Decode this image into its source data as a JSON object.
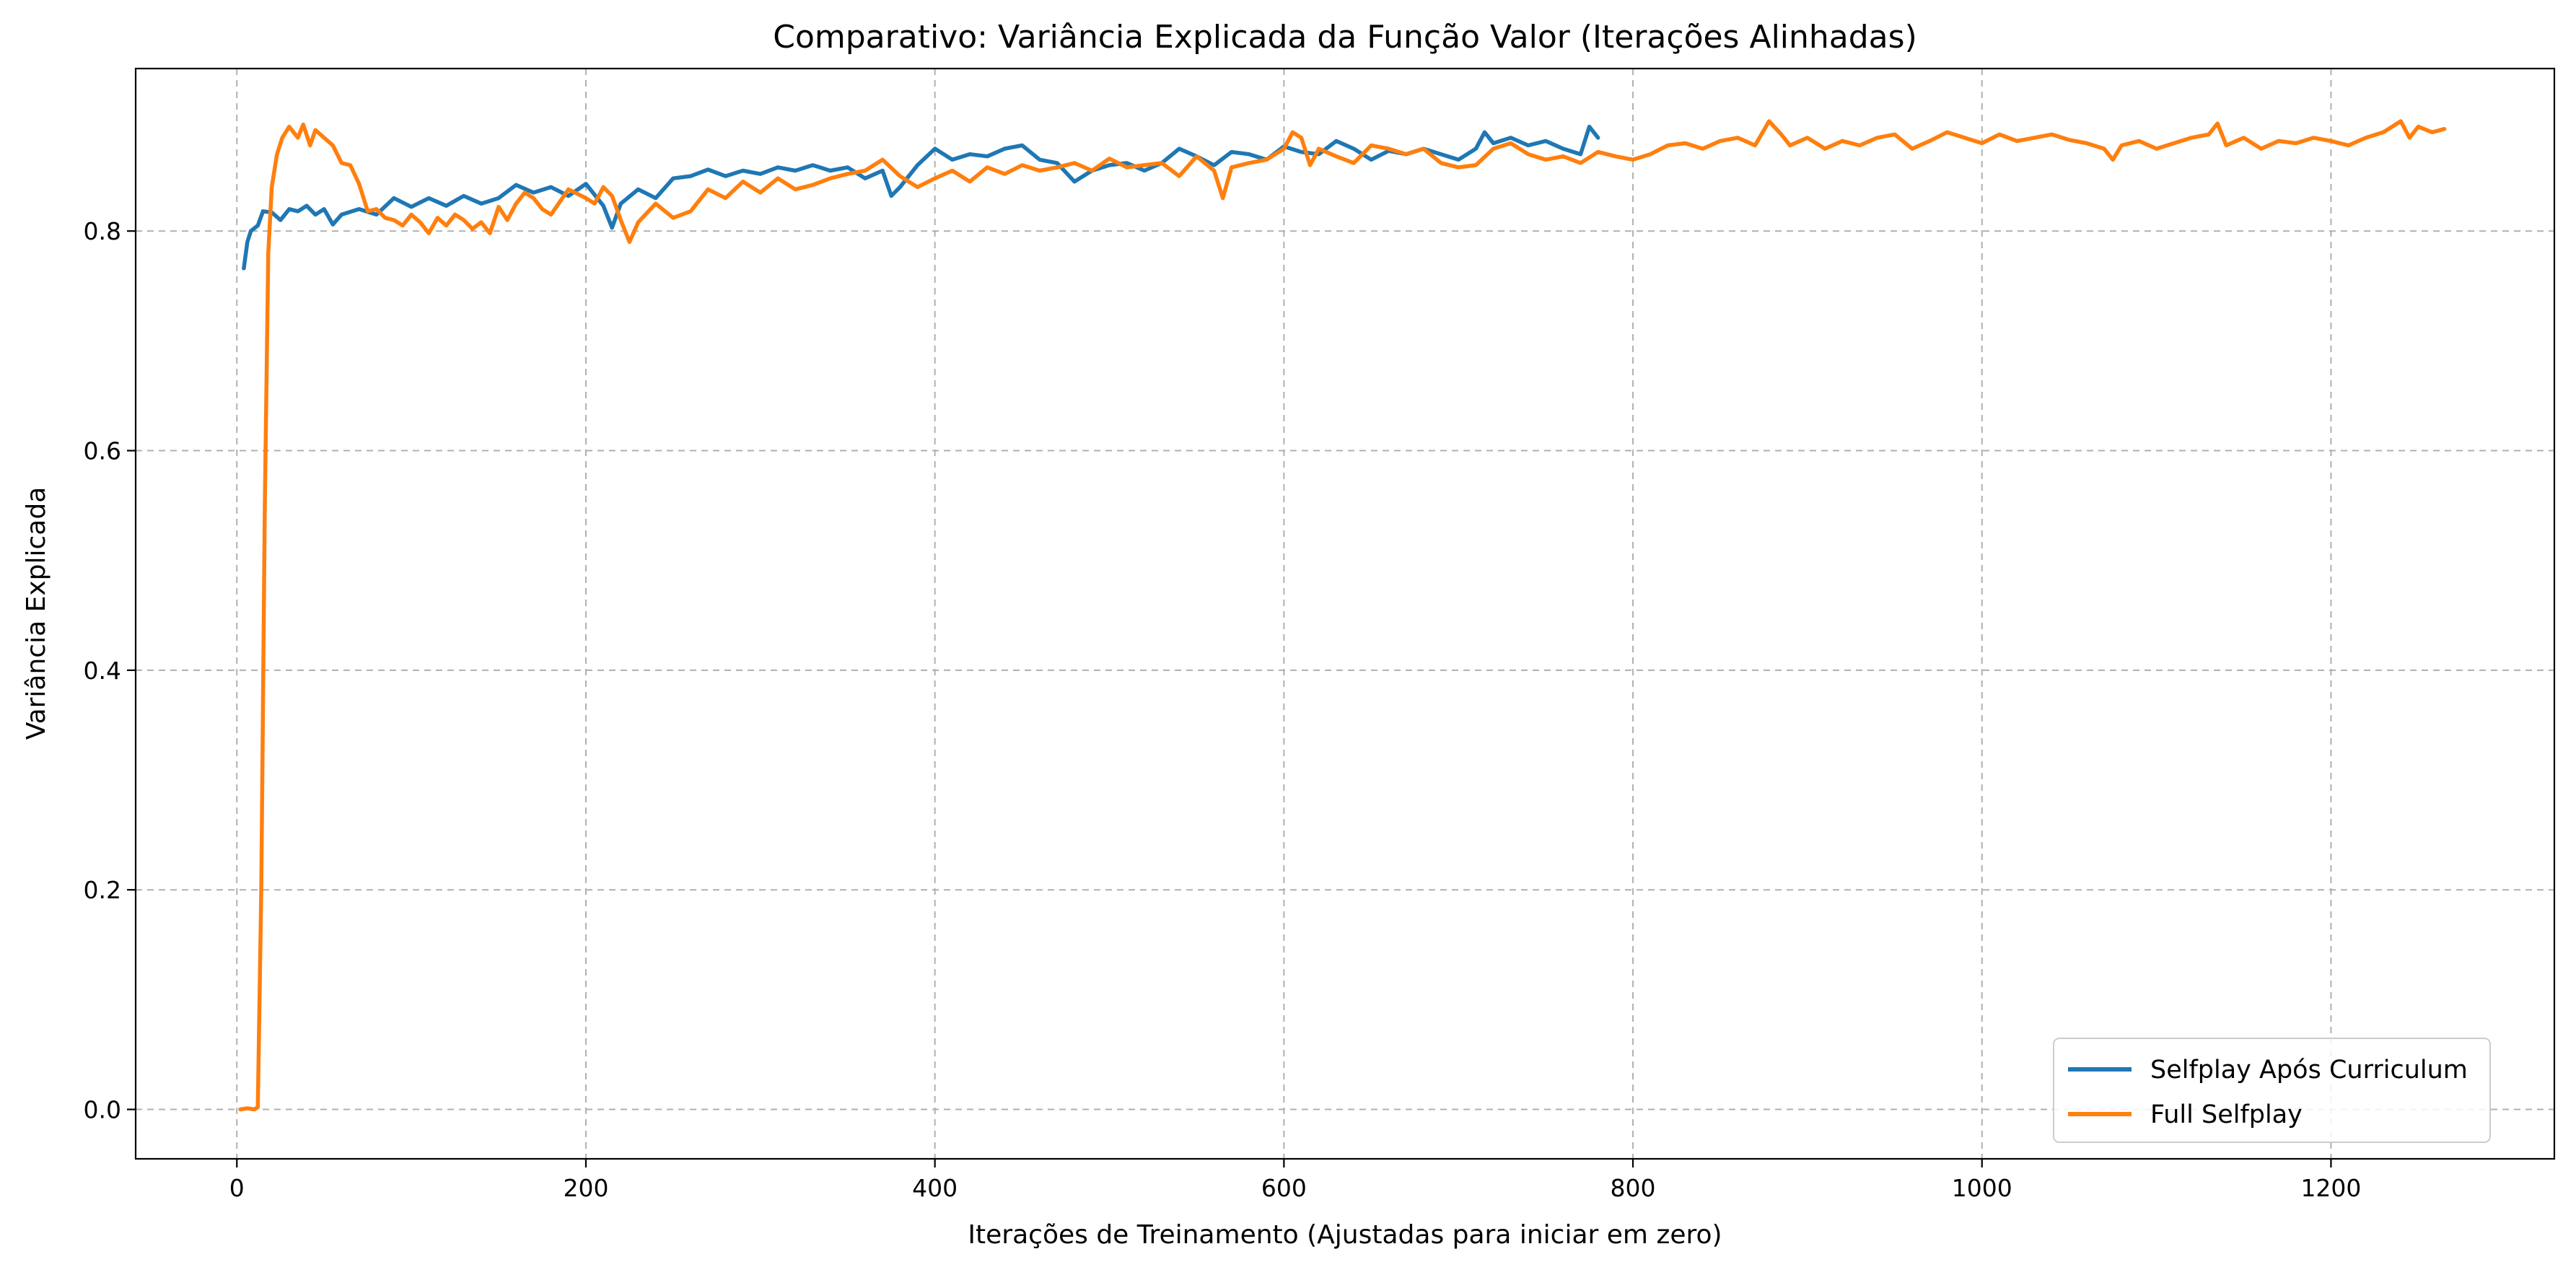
{
  "chart_data": {
    "type": "line",
    "title": "Comparativo: Variância Explicada da Função Valor (Iterações Alinhadas)",
    "xlabel": "Iterações de Treinamento (Ajustadas para iniciar em zero)",
    "ylabel": "Variância Explicada",
    "xlim": [
      -58,
      1328
    ],
    "ylim": [
      -0.045,
      0.948
    ],
    "xticks": [
      0,
      200,
      400,
      600,
      800,
      1000,
      1200
    ],
    "yticks": [
      0.0,
      0.2,
      0.4,
      0.6,
      0.8
    ],
    "xtick_labels": [
      "0",
      "200",
      "400",
      "600",
      "800",
      "1000",
      "1200"
    ],
    "ytick_labels": [
      "0.0",
      "0.2",
      "0.4",
      "0.6",
      "0.8"
    ],
    "grid": true,
    "legend_position": "lower-right",
    "series": [
      {
        "name": "Selfplay Após Curriculum",
        "color": "#1f77b4",
        "points": [
          [
            4,
            0.766
          ],
          [
            6,
            0.79
          ],
          [
            8,
            0.8
          ],
          [
            12,
            0.805
          ],
          [
            15,
            0.818
          ],
          [
            20,
            0.817
          ],
          [
            25,
            0.81
          ],
          [
            30,
            0.82
          ],
          [
            35,
            0.818
          ],
          [
            40,
            0.823
          ],
          [
            45,
            0.815
          ],
          [
            50,
            0.82
          ],
          [
            55,
            0.806
          ],
          [
            60,
            0.815
          ],
          [
            70,
            0.82
          ],
          [
            80,
            0.815
          ],
          [
            90,
            0.83
          ],
          [
            100,
            0.822
          ],
          [
            110,
            0.83
          ],
          [
            120,
            0.823
          ],
          [
            130,
            0.832
          ],
          [
            140,
            0.825
          ],
          [
            150,
            0.83
          ],
          [
            160,
            0.842
          ],
          [
            170,
            0.835
          ],
          [
            180,
            0.84
          ],
          [
            190,
            0.832
          ],
          [
            200,
            0.843
          ],
          [
            210,
            0.823
          ],
          [
            215,
            0.803
          ],
          [
            220,
            0.825
          ],
          [
            230,
            0.838
          ],
          [
            240,
            0.83
          ],
          [
            250,
            0.848
          ],
          [
            260,
            0.85
          ],
          [
            270,
            0.856
          ],
          [
            280,
            0.85
          ],
          [
            290,
            0.855
          ],
          [
            300,
            0.852
          ],
          [
            310,
            0.858
          ],
          [
            320,
            0.855
          ],
          [
            330,
            0.86
          ],
          [
            340,
            0.855
          ],
          [
            350,
            0.858
          ],
          [
            360,
            0.848
          ],
          [
            370,
            0.855
          ],
          [
            375,
            0.832
          ],
          [
            380,
            0.84
          ],
          [
            390,
            0.86
          ],
          [
            400,
            0.875
          ],
          [
            410,
            0.865
          ],
          [
            420,
            0.87
          ],
          [
            430,
            0.868
          ],
          [
            440,
            0.875
          ],
          [
            450,
            0.878
          ],
          [
            460,
            0.865
          ],
          [
            470,
            0.862
          ],
          [
            480,
            0.845
          ],
          [
            490,
            0.855
          ],
          [
            500,
            0.86
          ],
          [
            510,
            0.862
          ],
          [
            520,
            0.855
          ],
          [
            530,
            0.862
          ],
          [
            540,
            0.875
          ],
          [
            550,
            0.868
          ],
          [
            560,
            0.86
          ],
          [
            570,
            0.872
          ],
          [
            580,
            0.87
          ],
          [
            590,
            0.865
          ],
          [
            600,
            0.877
          ],
          [
            610,
            0.872
          ],
          [
            620,
            0.87
          ],
          [
            630,
            0.882
          ],
          [
            640,
            0.875
          ],
          [
            650,
            0.865
          ],
          [
            660,
            0.873
          ],
          [
            670,
            0.87
          ],
          [
            680,
            0.875
          ],
          [
            690,
            0.87
          ],
          [
            700,
            0.865
          ],
          [
            710,
            0.875
          ],
          [
            715,
            0.89
          ],
          [
            720,
            0.88
          ],
          [
            730,
            0.885
          ],
          [
            740,
            0.878
          ],
          [
            750,
            0.882
          ],
          [
            760,
            0.875
          ],
          [
            770,
            0.87
          ],
          [
            775,
            0.895
          ],
          [
            780,
            0.885
          ]
        ]
      },
      {
        "name": "Full Selfplay",
        "color": "#ff7f0e",
        "points": [
          [
            2,
            0.0
          ],
          [
            6,
            0.001
          ],
          [
            10,
            0.0
          ],
          [
            12,
            0.002
          ],
          [
            14,
            0.2
          ],
          [
            16,
            0.55
          ],
          [
            18,
            0.78
          ],
          [
            20,
            0.84
          ],
          [
            23,
            0.87
          ],
          [
            26,
            0.885
          ],
          [
            30,
            0.895
          ],
          [
            35,
            0.885
          ],
          [
            38,
            0.897
          ],
          [
            42,
            0.878
          ],
          [
            45,
            0.892
          ],
          [
            50,
            0.885
          ],
          [
            55,
            0.878
          ],
          [
            60,
            0.862
          ],
          [
            65,
            0.86
          ],
          [
            70,
            0.843
          ],
          [
            75,
            0.818
          ],
          [
            80,
            0.82
          ],
          [
            85,
            0.812
          ],
          [
            90,
            0.81
          ],
          [
            95,
            0.805
          ],
          [
            100,
            0.815
          ],
          [
            105,
            0.808
          ],
          [
            110,
            0.798
          ],
          [
            115,
            0.812
          ],
          [
            120,
            0.805
          ],
          [
            125,
            0.815
          ],
          [
            130,
            0.81
          ],
          [
            135,
            0.802
          ],
          [
            140,
            0.808
          ],
          [
            145,
            0.798
          ],
          [
            150,
            0.822
          ],
          [
            155,
            0.81
          ],
          [
            160,
            0.825
          ],
          [
            165,
            0.835
          ],
          [
            170,
            0.83
          ],
          [
            175,
            0.82
          ],
          [
            180,
            0.815
          ],
          [
            190,
            0.838
          ],
          [
            200,
            0.83
          ],
          [
            205,
            0.825
          ],
          [
            210,
            0.84
          ],
          [
            215,
            0.832
          ],
          [
            220,
            0.81
          ],
          [
            225,
            0.79
          ],
          [
            230,
            0.808
          ],
          [
            240,
            0.825
          ],
          [
            250,
            0.812
          ],
          [
            260,
            0.818
          ],
          [
            270,
            0.838
          ],
          [
            280,
            0.83
          ],
          [
            290,
            0.845
          ],
          [
            300,
            0.835
          ],
          [
            310,
            0.848
          ],
          [
            320,
            0.838
          ],
          [
            330,
            0.842
          ],
          [
            340,
            0.848
          ],
          [
            350,
            0.852
          ],
          [
            360,
            0.855
          ],
          [
            370,
            0.865
          ],
          [
            380,
            0.85
          ],
          [
            390,
            0.84
          ],
          [
            400,
            0.848
          ],
          [
            410,
            0.855
          ],
          [
            420,
            0.845
          ],
          [
            430,
            0.858
          ],
          [
            440,
            0.852
          ],
          [
            450,
            0.86
          ],
          [
            460,
            0.855
          ],
          [
            470,
            0.858
          ],
          [
            480,
            0.862
          ],
          [
            490,
            0.855
          ],
          [
            500,
            0.866
          ],
          [
            510,
            0.858
          ],
          [
            520,
            0.86
          ],
          [
            530,
            0.862
          ],
          [
            540,
            0.85
          ],
          [
            550,
            0.868
          ],
          [
            560,
            0.855
          ],
          [
            565,
            0.83
          ],
          [
            570,
            0.858
          ],
          [
            580,
            0.862
          ],
          [
            590,
            0.865
          ],
          [
            600,
            0.875
          ],
          [
            605,
            0.89
          ],
          [
            610,
            0.885
          ],
          [
            615,
            0.86
          ],
          [
            620,
            0.875
          ],
          [
            630,
            0.868
          ],
          [
            640,
            0.862
          ],
          [
            650,
            0.878
          ],
          [
            660,
            0.875
          ],
          [
            670,
            0.87
          ],
          [
            680,
            0.875
          ],
          [
            690,
            0.862
          ],
          [
            700,
            0.858
          ],
          [
            710,
            0.86
          ],
          [
            720,
            0.875
          ],
          [
            730,
            0.88
          ],
          [
            740,
            0.87
          ],
          [
            750,
            0.865
          ],
          [
            760,
            0.868
          ],
          [
            770,
            0.862
          ],
          [
            780,
            0.872
          ],
          [
            790,
            0.868
          ],
          [
            800,
            0.865
          ],
          [
            810,
            0.87
          ],
          [
            820,
            0.878
          ],
          [
            830,
            0.88
          ],
          [
            840,
            0.875
          ],
          [
            850,
            0.882
          ],
          [
            860,
            0.885
          ],
          [
            870,
            0.878
          ],
          [
            878,
            0.9
          ],
          [
            885,
            0.888
          ],
          [
            890,
            0.878
          ],
          [
            900,
            0.885
          ],
          [
            910,
            0.875
          ],
          [
            920,
            0.882
          ],
          [
            930,
            0.878
          ],
          [
            940,
            0.885
          ],
          [
            950,
            0.888
          ],
          [
            960,
            0.875
          ],
          [
            970,
            0.882
          ],
          [
            980,
            0.89
          ],
          [
            990,
            0.885
          ],
          [
            1000,
            0.88
          ],
          [
            1010,
            0.888
          ],
          [
            1020,
            0.882
          ],
          [
            1030,
            0.885
          ],
          [
            1040,
            0.888
          ],
          [
            1050,
            0.883
          ],
          [
            1060,
            0.88
          ],
          [
            1070,
            0.875
          ],
          [
            1075,
            0.865
          ],
          [
            1080,
            0.878
          ],
          [
            1090,
            0.882
          ],
          [
            1100,
            0.875
          ],
          [
            1110,
            0.88
          ],
          [
            1120,
            0.885
          ],
          [
            1130,
            0.888
          ],
          [
            1135,
            0.898
          ],
          [
            1140,
            0.878
          ],
          [
            1150,
            0.885
          ],
          [
            1160,
            0.875
          ],
          [
            1170,
            0.882
          ],
          [
            1180,
            0.88
          ],
          [
            1190,
            0.885
          ],
          [
            1200,
            0.882
          ],
          [
            1210,
            0.878
          ],
          [
            1220,
            0.885
          ],
          [
            1230,
            0.89
          ],
          [
            1240,
            0.9
          ],
          [
            1245,
            0.885
          ],
          [
            1250,
            0.895
          ],
          [
            1258,
            0.89
          ],
          [
            1265,
            0.893
          ]
        ]
      }
    ]
  }
}
